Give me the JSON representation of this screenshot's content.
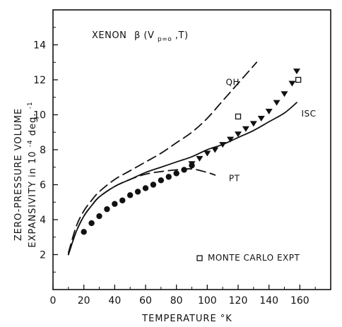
{
  "chart_data": {
    "type": "line",
    "title_main": "XENON",
    "title_beta": "β",
    "title_open": "(V",
    "title_sub": "p=o",
    "title_close": ",T)",
    "xlabel": "TEMPERATURE  °K",
    "ylabel_line1": "ZERO-PRESSURE  VOLUME",
    "ylabel_line2_prefix": "EXPANSIVITY  in  10",
    "ylabel_sup": "-4",
    "ylabel_line2_suffix": " deg.",
    "ylabel_sup2": "-1",
    "xlim": [
      0,
      180
    ],
    "ylim": [
      0,
      16
    ],
    "x_ticks": [
      0,
      20,
      40,
      60,
      80,
      100,
      120,
      140,
      160
    ],
    "x_tick_labels": [
      "0",
      "20",
      "40",
      "60",
      "80",
      "100",
      "120",
      "140",
      "160"
    ],
    "y_ticks": [
      2,
      4,
      6,
      8,
      10,
      12,
      14
    ],
    "y_tick_labels": [
      "2",
      "4",
      "6",
      "8",
      "10",
      "12",
      "14"
    ],
    "legend_note": "MONTE CARLO EXPT",
    "series": [
      {
        "name": "QH",
        "style": "dashed",
        "color": "#111111",
        "x": [
          10,
          15,
          20,
          25,
          30,
          40,
          50,
          60,
          70,
          80,
          90,
          100,
          110,
          120,
          132
        ],
        "y": [
          2.1,
          3.6,
          4.5,
          5.1,
          5.6,
          6.3,
          6.8,
          7.3,
          7.8,
          8.4,
          9.0,
          9.8,
          10.8,
          11.8,
          13.0
        ]
      },
      {
        "name": "ISC",
        "style": "solid",
        "color": "#111111",
        "x": [
          10,
          15,
          20,
          25,
          30,
          40,
          50,
          60,
          70,
          80,
          90,
          100,
          110,
          120,
          130,
          140,
          150,
          158
        ],
        "y": [
          2.0,
          3.3,
          4.2,
          4.8,
          5.3,
          5.9,
          6.3,
          6.7,
          7.0,
          7.3,
          7.6,
          8.0,
          8.3,
          8.7,
          9.1,
          9.6,
          10.1,
          10.7
        ]
      },
      {
        "name": "PT",
        "style": "dashed",
        "color": "#111111",
        "x": [
          10,
          15,
          20,
          25,
          30,
          40,
          50,
          60,
          70,
          80,
          90,
          100,
          105
        ],
        "y": [
          2.0,
          3.3,
          4.2,
          4.8,
          5.3,
          5.9,
          6.3,
          6.6,
          6.75,
          6.85,
          6.9,
          6.7,
          6.55
        ]
      },
      {
        "name": "experiment-circles",
        "style": "markers-circle",
        "color": "#111111",
        "x": [
          20,
          25,
          30,
          35,
          40,
          45,
          50,
          55,
          60,
          65,
          70,
          75,
          80,
          85,
          90
        ],
        "y": [
          3.3,
          3.8,
          4.2,
          4.6,
          4.9,
          5.1,
          5.4,
          5.6,
          5.8,
          6.0,
          6.25,
          6.45,
          6.65,
          6.85,
          7.1
        ]
      },
      {
        "name": "experiment-triangles",
        "style": "markers-triangle",
        "color": "#111111",
        "x": [
          90,
          95,
          100,
          105,
          110,
          115,
          120,
          125,
          130,
          135,
          140,
          145,
          150,
          155,
          158
        ],
        "y": [
          7.2,
          7.5,
          7.8,
          8.0,
          8.3,
          8.6,
          8.9,
          9.2,
          9.5,
          9.8,
          10.2,
          10.7,
          11.2,
          11.8,
          12.5
        ]
      },
      {
        "name": "monte-carlo",
        "style": "markers-square",
        "color": "#111111",
        "x": [
          120,
          159
        ],
        "y": [
          9.9,
          12.0
        ]
      }
    ],
    "annotations": [
      {
        "text": "QH",
        "x": 112,
        "y": 11.7
      },
      {
        "text": "ISC",
        "x": 161,
        "y": 9.9
      },
      {
        "text": "PT",
        "x": 114,
        "y": 6.2
      }
    ]
  }
}
